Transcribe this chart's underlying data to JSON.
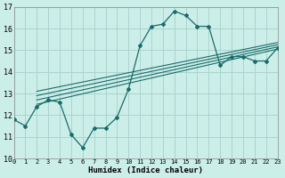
{
  "xlabel": "Humidex (Indice chaleur)",
  "bg_color": "#cceee8",
  "grid_color": "#aad4ce",
  "line_color": "#1a6b6b",
  "xlim": [
    0,
    23
  ],
  "ylim": [
    10,
    17
  ],
  "xticks": [
    0,
    1,
    2,
    3,
    4,
    5,
    6,
    7,
    8,
    9,
    10,
    11,
    12,
    13,
    14,
    15,
    16,
    17,
    18,
    19,
    20,
    21,
    22,
    23
  ],
  "yticks": [
    10,
    11,
    12,
    13,
    14,
    15,
    16,
    17
  ],
  "main_x": [
    0,
    1,
    2,
    3,
    4,
    5,
    6,
    7,
    8,
    9,
    10,
    11,
    12,
    13,
    14,
    15,
    16,
    17,
    18,
    19,
    20,
    21,
    22,
    23
  ],
  "main_y": [
    11.8,
    11.5,
    12.4,
    12.7,
    12.6,
    11.1,
    10.5,
    11.4,
    11.4,
    11.9,
    13.2,
    15.2,
    16.1,
    16.2,
    16.8,
    16.6,
    16.1,
    16.1,
    14.3,
    14.7,
    14.7,
    14.5,
    14.5,
    15.1
  ],
  "band_lines": [
    {
      "x0": 2,
      "y0": 12.5,
      "x1": 23,
      "y1": 15.05
    },
    {
      "x0": 2,
      "y0": 12.7,
      "x1": 23,
      "y1": 15.15
    },
    {
      "x0": 2,
      "y0": 12.9,
      "x1": 23,
      "y1": 15.25
    },
    {
      "x0": 2,
      "y0": 13.1,
      "x1": 23,
      "y1": 15.35
    }
  ]
}
